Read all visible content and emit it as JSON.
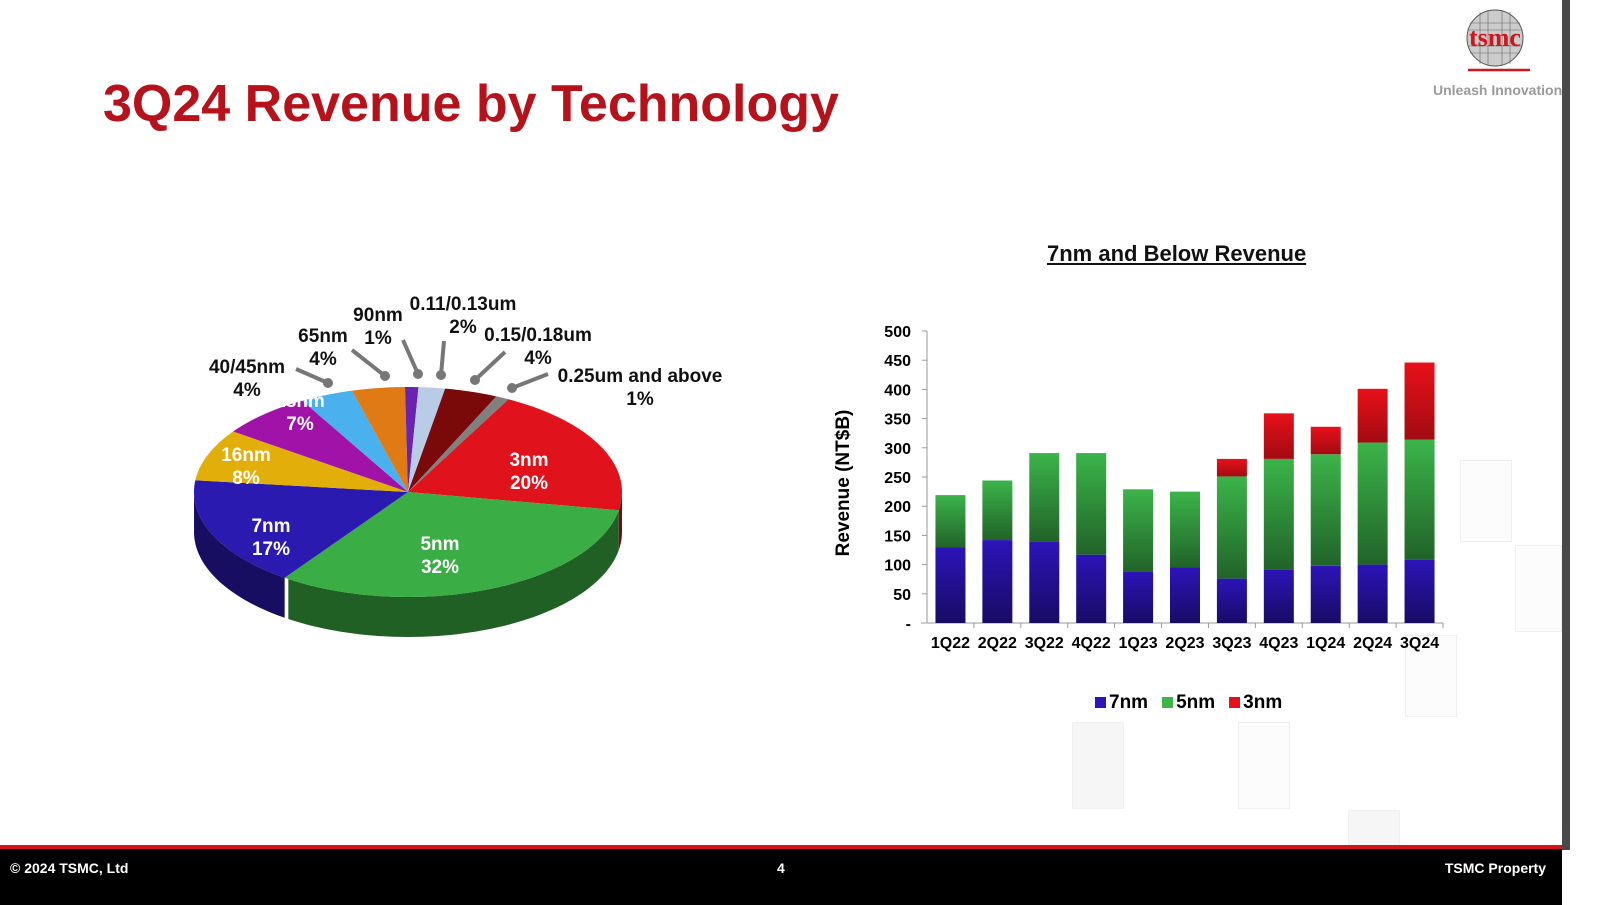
{
  "title": "3Q24 Revenue by Technology",
  "logo": {
    "text": "tsmc",
    "tagline": "Unleash Innovation"
  },
  "chart_data": [
    {
      "type": "pie",
      "title": "",
      "slices": [
        {
          "label": "3nm",
          "pct": "20%",
          "value": 20,
          "color": "#e0121b"
        },
        {
          "label": "5nm",
          "pct": "32%",
          "value": 32,
          "color": "#3aae44"
        },
        {
          "label": "7nm",
          "pct": "17%",
          "value": 17,
          "color": "#2a1ab0"
        },
        {
          "label": "16nm",
          "pct": "8%",
          "value": 8,
          "color": "#e2ae0a"
        },
        {
          "label": "28nm",
          "pct": "7%",
          "value": 7,
          "color": "#a012a8"
        },
        {
          "label": "40/45nm",
          "pct": "4%",
          "value": 4,
          "color": "#4ab0ee"
        },
        {
          "label": "65nm",
          "pct": "4%",
          "value": 4,
          "color": "#e07a14"
        },
        {
          "label": "90nm",
          "pct": "1%",
          "value": 1,
          "color": "#6a22b0"
        },
        {
          "label": "0.11/0.13um",
          "pct": "2%",
          "value": 2,
          "color": "#b8cce6"
        },
        {
          "label": "0.15/0.18um",
          "pct": "4%",
          "value": 4,
          "color": "#7a0a0a"
        },
        {
          "label": "0.25um and above",
          "pct": "1%",
          "value": 1,
          "color": "#808080"
        }
      ]
    },
    {
      "type": "bar",
      "stacked": true,
      "title": "7nm and Below Revenue",
      "ylabel": "Revenue (NT$B)",
      "xlabel": "",
      "ylim": [
        0,
        500
      ],
      "yticks": [
        "-",
        "50",
        "100",
        "150",
        "200",
        "250",
        "300",
        "350",
        "400",
        "450",
        "500"
      ],
      "categories": [
        "1Q22",
        "2Q22",
        "3Q22",
        "4Q22",
        "1Q23",
        "2Q23",
        "3Q23",
        "4Q23",
        "1Q24",
        "2Q24",
        "3Q24"
      ],
      "series": [
        {
          "name": "7nm",
          "color": "#2c14b8",
          "values": [
            130,
            142,
            140,
            117,
            88,
            95,
            76,
            92,
            98,
            100,
            108
          ]
        },
        {
          "name": "5nm",
          "color": "#3cb44a",
          "values": [
            89,
            102,
            151,
            174,
            141,
            130,
            175,
            189,
            191,
            209,
            206
          ]
        },
        {
          "name": "3nm",
          "color": "#e8101a",
          "values": [
            0,
            0,
            0,
            0,
            0,
            0,
            30,
            78,
            47,
            92,
            132
          ]
        }
      ],
      "legend_position": "bottom",
      "grid": false
    }
  ],
  "footer": {
    "copyright": "© 2024 TSMC, Ltd",
    "page": "4",
    "property": "TSMC Property"
  }
}
